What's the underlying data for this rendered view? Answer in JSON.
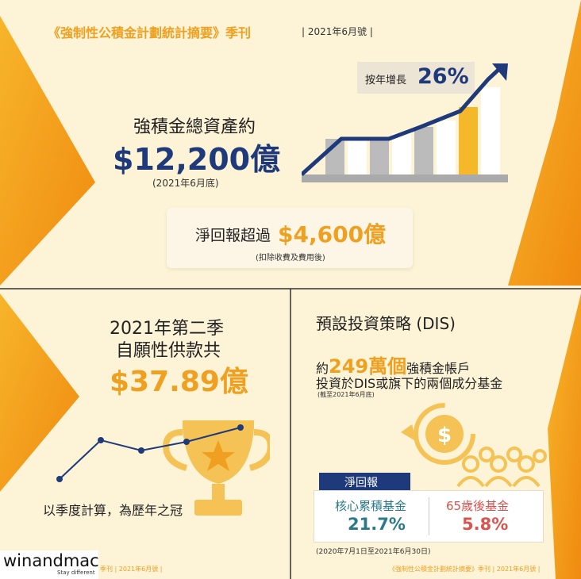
{
  "header": {
    "title": "《強制性公積金計劃統計摘要》季刊",
    "issue": "| 2021年6月號 |"
  },
  "growth": {
    "label": "按年增長",
    "value": "26%"
  },
  "assets": {
    "label": "強積金總資產約",
    "value": "$12,200億",
    "date": "(2021年6月底)"
  },
  "net_return": {
    "label": "淨回報超過",
    "value": "$4,600億",
    "note": "(扣除收費及費用後)"
  },
  "voluntary": {
    "line1": "2021年第二季",
    "line2": "自願性供款共",
    "value": "$37.89億",
    "caption": "以季度計算，為歷年之冠"
  },
  "dis": {
    "title": "預設投資策略 (DIS)",
    "prefix": "約",
    "count": "249萬個",
    "suffix": "強積金帳戶",
    "line2": "投資於DIS或旗下的兩個成分基金",
    "note": "(截至2021年6月底)",
    "return_label": "淨回報",
    "core_label": "核心累積基金",
    "core_value": "21.7%",
    "age65_label": "65歲後基金",
    "age65_value": "5.8%",
    "period": "(2020年7月1日至2021年6月30日)"
  },
  "footer": {
    "brand": "winandmac",
    "tagline": "Stay different",
    "left_issue": "季刊 | 2021年6月號 |",
    "right_title": "《強制性公積金計劃統計摘要》季刊 | 2021年6月號 |"
  },
  "colors": {
    "accent": "#f0a020",
    "navy": "#1f3a7a",
    "teal": "#2b7a8a",
    "red": "#d9534f",
    "background": "#fdf3d6"
  }
}
